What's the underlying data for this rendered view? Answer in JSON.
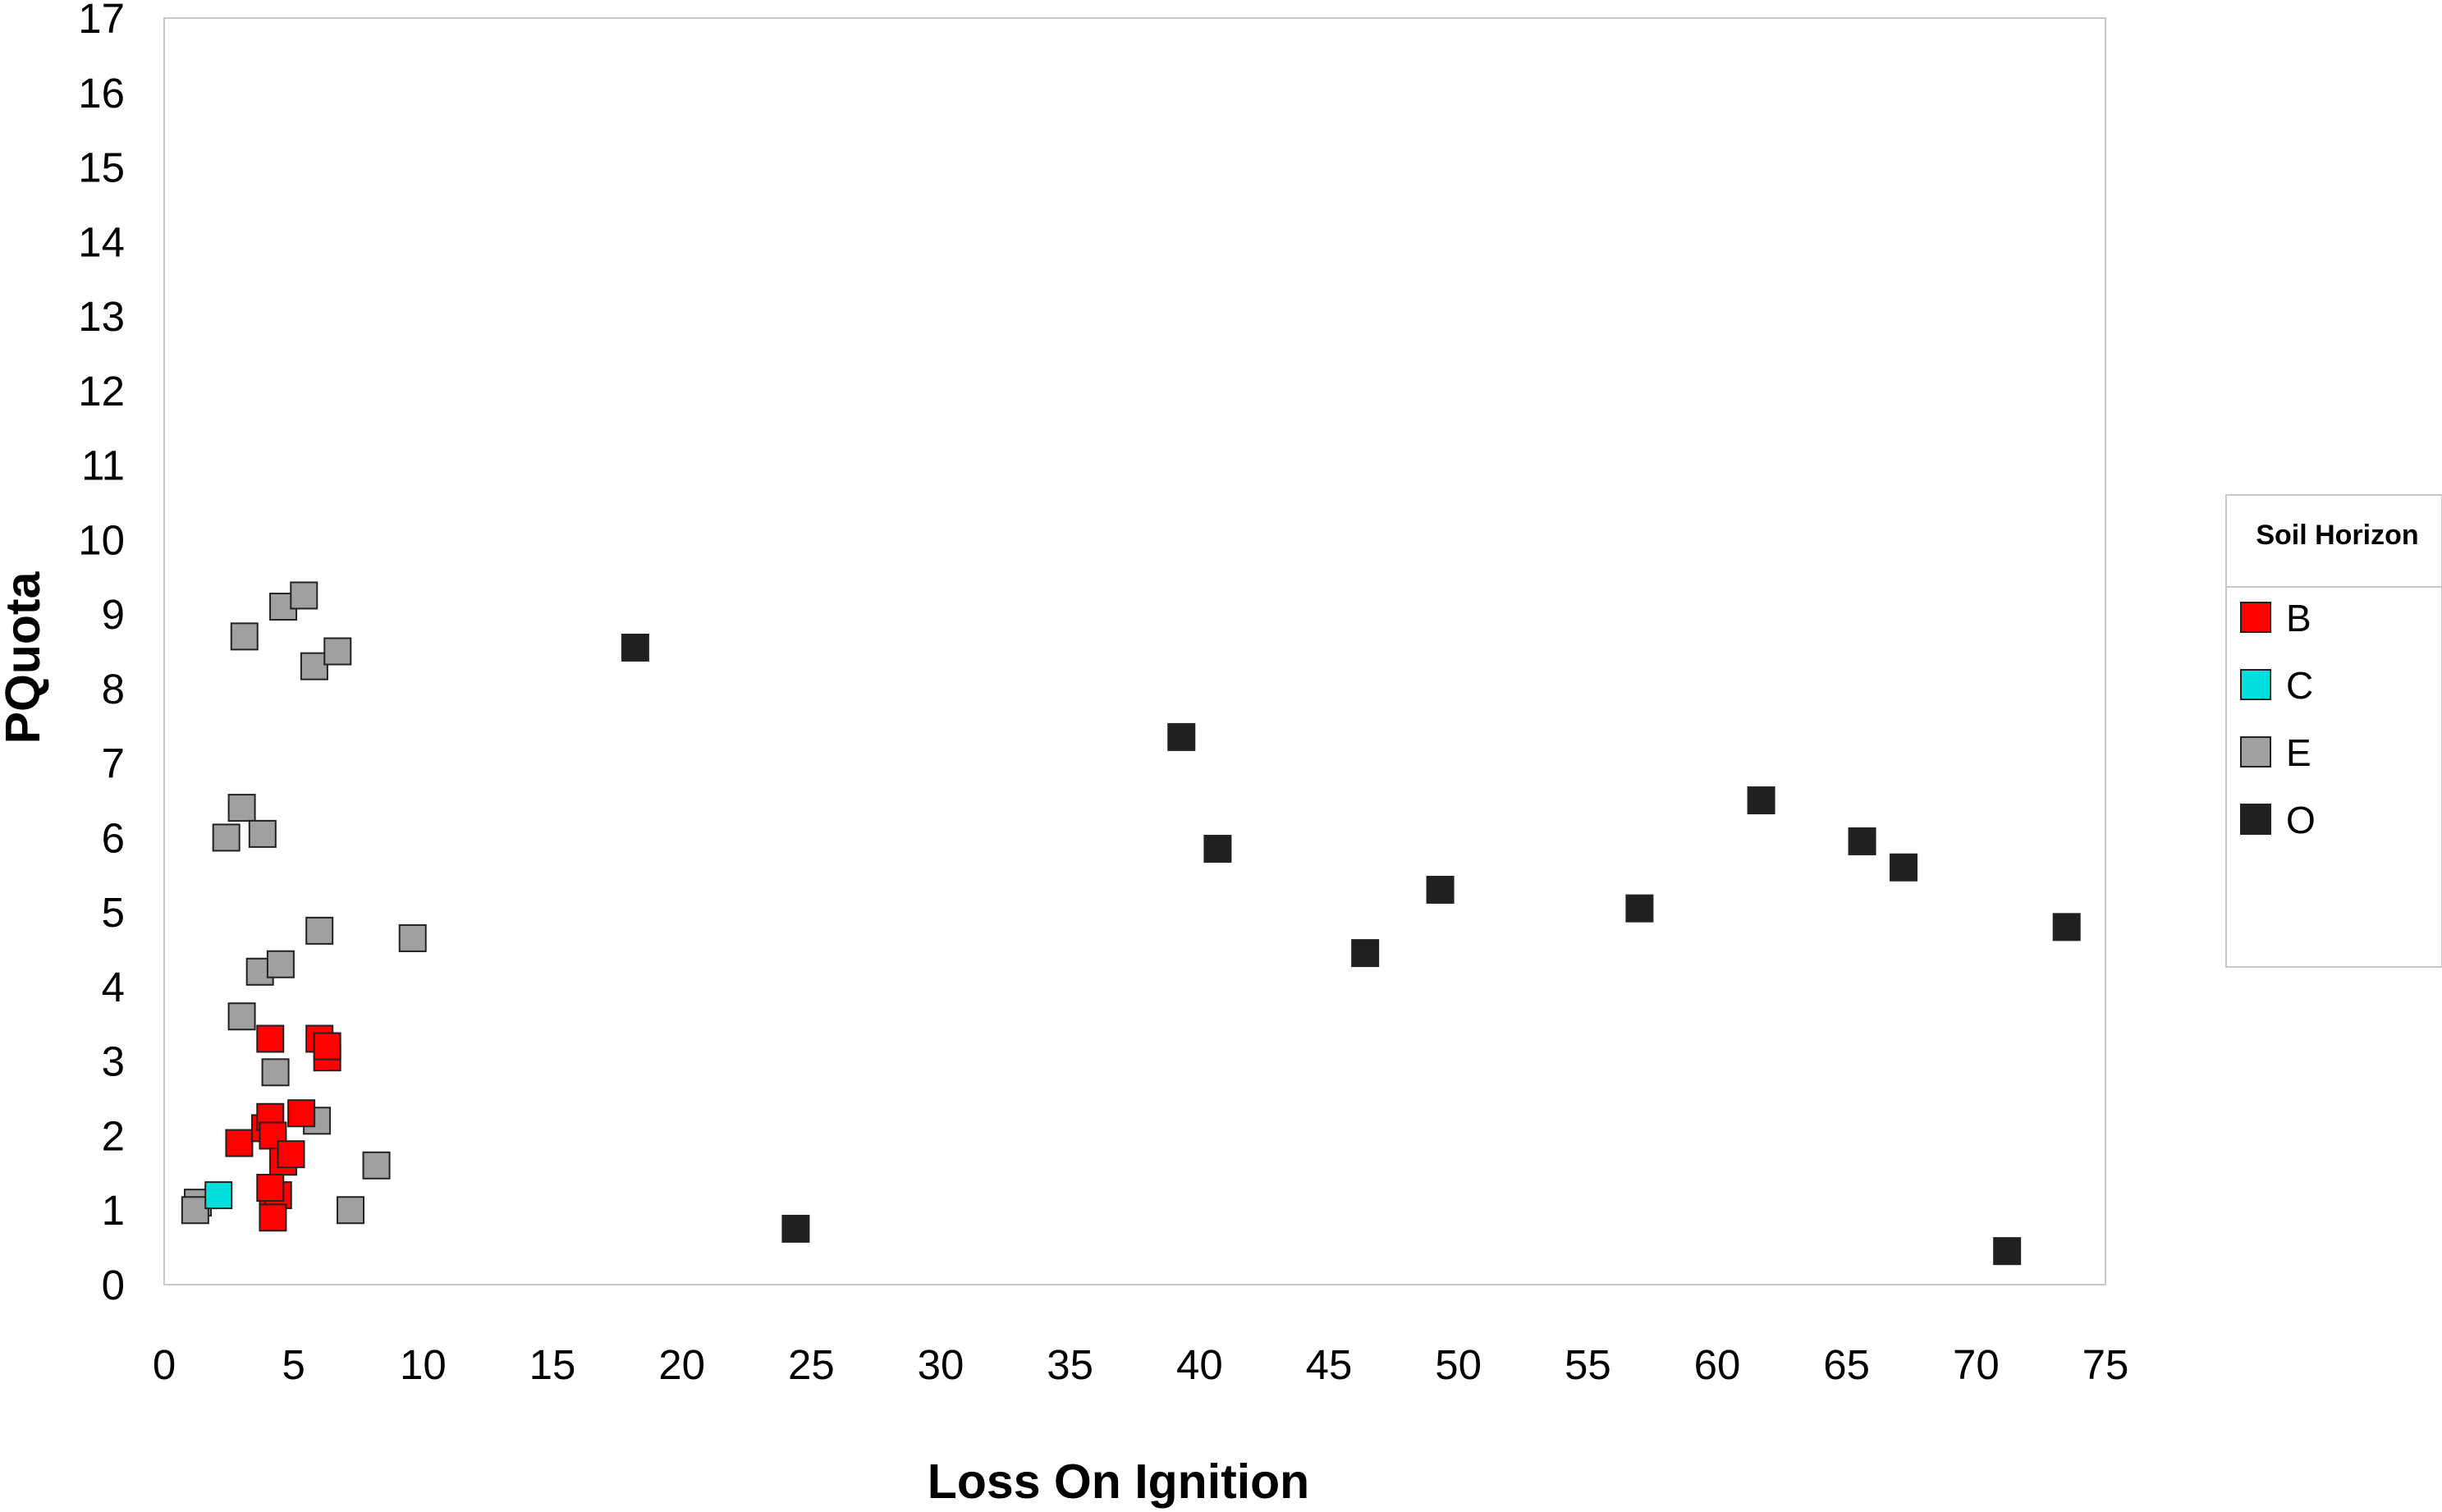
{
  "chart_data": {
    "type": "scatter",
    "title": "",
    "xlabel": "Loss On Ignition",
    "ylabel": "PQuota",
    "xlim": [
      0,
      75
    ],
    "ylim": [
      0,
      17
    ],
    "x_ticks": [
      0,
      5,
      10,
      15,
      20,
      25,
      30,
      35,
      40,
      45,
      50,
      55,
      60,
      65,
      70,
      75
    ],
    "y_ticks": [
      0,
      1,
      2,
      3,
      4,
      5,
      6,
      7,
      8,
      9,
      10,
      11,
      12,
      13,
      14,
      15,
      16,
      17
    ],
    "grid": false,
    "marker": "square",
    "legend": {
      "title": "Soil Horizon",
      "position": "right"
    },
    "series": [
      {
        "name": "B",
        "color": "#ff0000",
        "points": [
          [
            2.9,
            1.9
          ],
          [
            3.9,
            2.1
          ],
          [
            4.1,
            2.25
          ],
          [
            4.2,
            2.0
          ],
          [
            4.6,
            1.65
          ],
          [
            4.9,
            1.75
          ],
          [
            5.3,
            2.3
          ],
          [
            4.1,
            3.3
          ],
          [
            6.0,
            3.3
          ],
          [
            6.3,
            3.05
          ],
          [
            6.3,
            3.2
          ],
          [
            4.2,
            1.2
          ],
          [
            4.4,
            1.2
          ],
          [
            4.1,
            1.3
          ],
          [
            4.2,
            0.9
          ]
        ]
      },
      {
        "name": "C",
        "color": "#00dede",
        "points": [
          [
            2.1,
            1.2
          ]
        ]
      },
      {
        "name": "E",
        "color": "#a0a0a0",
        "points": [
          [
            1.3,
            1.1
          ],
          [
            1.2,
            1.0
          ],
          [
            7.2,
            1.0
          ],
          [
            8.2,
            1.6
          ],
          [
            5.9,
            2.2
          ],
          [
            4.3,
            2.85
          ],
          [
            3.0,
            3.6
          ],
          [
            3.7,
            4.2
          ],
          [
            4.5,
            4.3
          ],
          [
            6.0,
            4.75
          ],
          [
            9.6,
            4.65
          ],
          [
            2.4,
            6.0
          ],
          [
            3.0,
            6.4
          ],
          [
            3.8,
            6.05
          ],
          [
            3.1,
            8.7
          ],
          [
            4.6,
            9.1
          ],
          [
            5.4,
            9.25
          ],
          [
            5.8,
            8.3
          ],
          [
            6.7,
            8.5
          ]
        ]
      },
      {
        "name": "O",
        "color": "#202020",
        "points": [
          [
            18.2,
            8.55
          ],
          [
            24.4,
            0.75
          ],
          [
            39.3,
            7.35
          ],
          [
            40.7,
            5.85
          ],
          [
            46.4,
            4.45
          ],
          [
            49.3,
            5.3
          ],
          [
            57.0,
            5.05
          ],
          [
            61.7,
            6.5
          ],
          [
            65.6,
            5.95
          ],
          [
            67.2,
            5.6
          ],
          [
            71.2,
            0.45
          ],
          [
            73.5,
            4.8
          ]
        ]
      }
    ]
  }
}
